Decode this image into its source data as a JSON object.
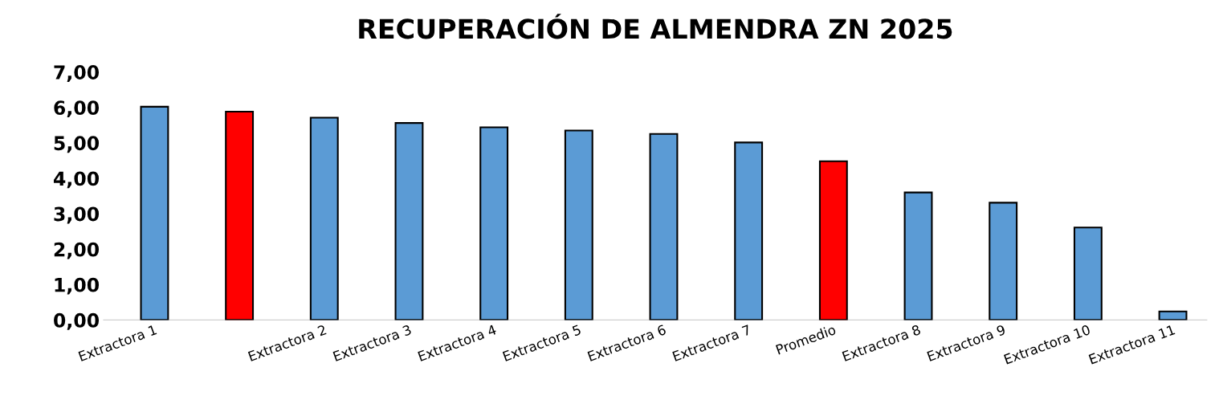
{
  "chart_data": {
    "type": "bar",
    "title": "RECUPERACIÓN DE ALMENDRA ZN 2025",
    "categories": [
      "Extractora 1",
      null,
      "Extractora 2",
      "Extractora 3",
      "Extractora 4",
      "Extractora 5",
      "Extractora 6",
      "Extractora 7",
      "Promedio",
      "Extractora 8",
      "Extractora 9",
      "Extractora 10",
      "Extractora 11"
    ],
    "values": [
      6.02,
      5.88,
      5.71,
      5.56,
      5.44,
      5.35,
      5.25,
      5.01,
      4.48,
      3.6,
      3.31,
      2.61,
      0.24
    ],
    "colors": [
      "#5b9bd5",
      "#ff0000",
      "#5b9bd5",
      "#5b9bd5",
      "#5b9bd5",
      "#5b9bd5",
      "#5b9bd5",
      "#5b9bd5",
      "#ff0000",
      "#5b9bd5",
      "#5b9bd5",
      "#5b9bd5",
      "#5b9bd5"
    ],
    "ylim": [
      0,
      7
    ],
    "yticks": [
      {
        "value": 0,
        "label": "0,00"
      },
      {
        "value": 1,
        "label": "1,00"
      },
      {
        "value": 2,
        "label": "2,00"
      },
      {
        "value": 3,
        "label": "3,00"
      },
      {
        "value": 4,
        "label": "4,00"
      },
      {
        "value": 5,
        "label": "5,00"
      },
      {
        "value": 6,
        "label": "6,00"
      },
      {
        "value": 7,
        "label": "7,00"
      }
    ],
    "grid": false,
    "legend": false
  }
}
